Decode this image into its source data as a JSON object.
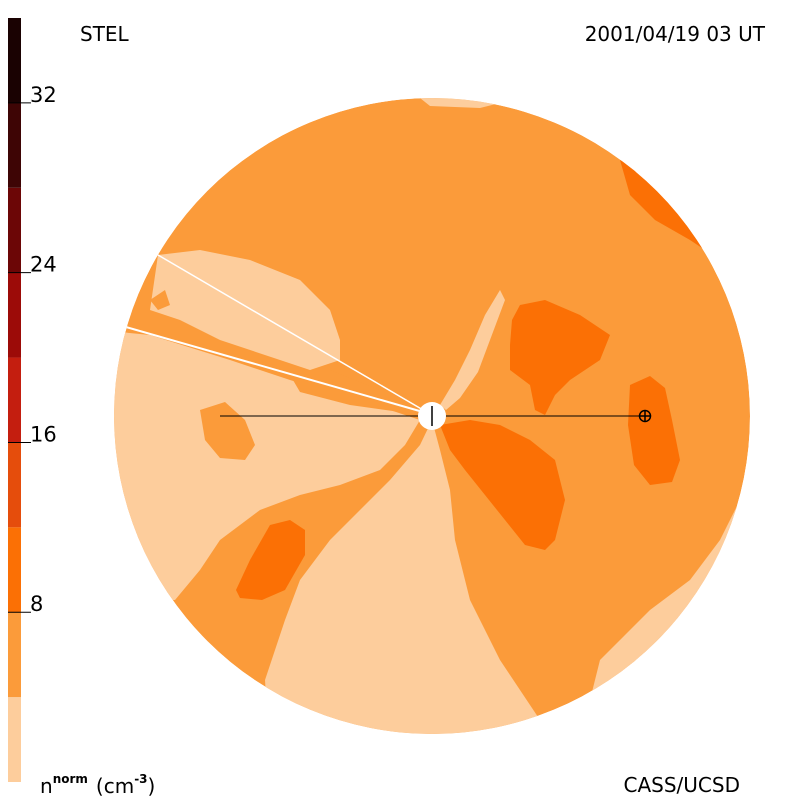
{
  "header": {
    "model_label": "STEL",
    "timestamp": "2001/04/19 03 UT"
  },
  "footer": {
    "credit": "CASS/UCSD"
  },
  "colorbar": {
    "quantity": "n",
    "superscript": "norm",
    "unit": "(cm",
    "unit_exponent": "-3",
    "unit_close": ")",
    "range": [
      0,
      36
    ],
    "ticks": [
      {
        "value": 8,
        "label": "8"
      },
      {
        "value": 16,
        "label": "16"
      },
      {
        "value": 24,
        "label": "24"
      },
      {
        "value": 32,
        "label": "32"
      }
    ],
    "bands": [
      {
        "from": 0,
        "to": 4,
        "color": "#fdcd9c"
      },
      {
        "from": 4,
        "to": 8,
        "color": "#fb9b3a"
      },
      {
        "from": 8,
        "to": 12,
        "color": "#fb7005"
      },
      {
        "from": 12,
        "to": 16,
        "color": "#e54d0c"
      },
      {
        "from": 16,
        "to": 20,
        "color": "#c41e0f"
      },
      {
        "from": 20,
        "to": 24,
        "color": "#9c0b08"
      },
      {
        "from": 24,
        "to": 28,
        "color": "#6c0606"
      },
      {
        "from": 28,
        "to": 32,
        "color": "#3e0505"
      },
      {
        "from": 32,
        "to": 36,
        "color": "#1a0202"
      }
    ]
  },
  "chart_data": {
    "type": "heatmap",
    "subtype": "ecliptic-plane density map (filled contours)",
    "title": "",
    "levels": [
      0,
      4,
      8,
      12,
      16,
      20,
      24,
      28,
      32,
      36
    ],
    "markers": [
      {
        "name": "sun",
        "symbol": "circle"
      },
      {
        "name": "earth",
        "symbol": "circle-plus"
      }
    ],
    "sun_earth_line": true
  }
}
